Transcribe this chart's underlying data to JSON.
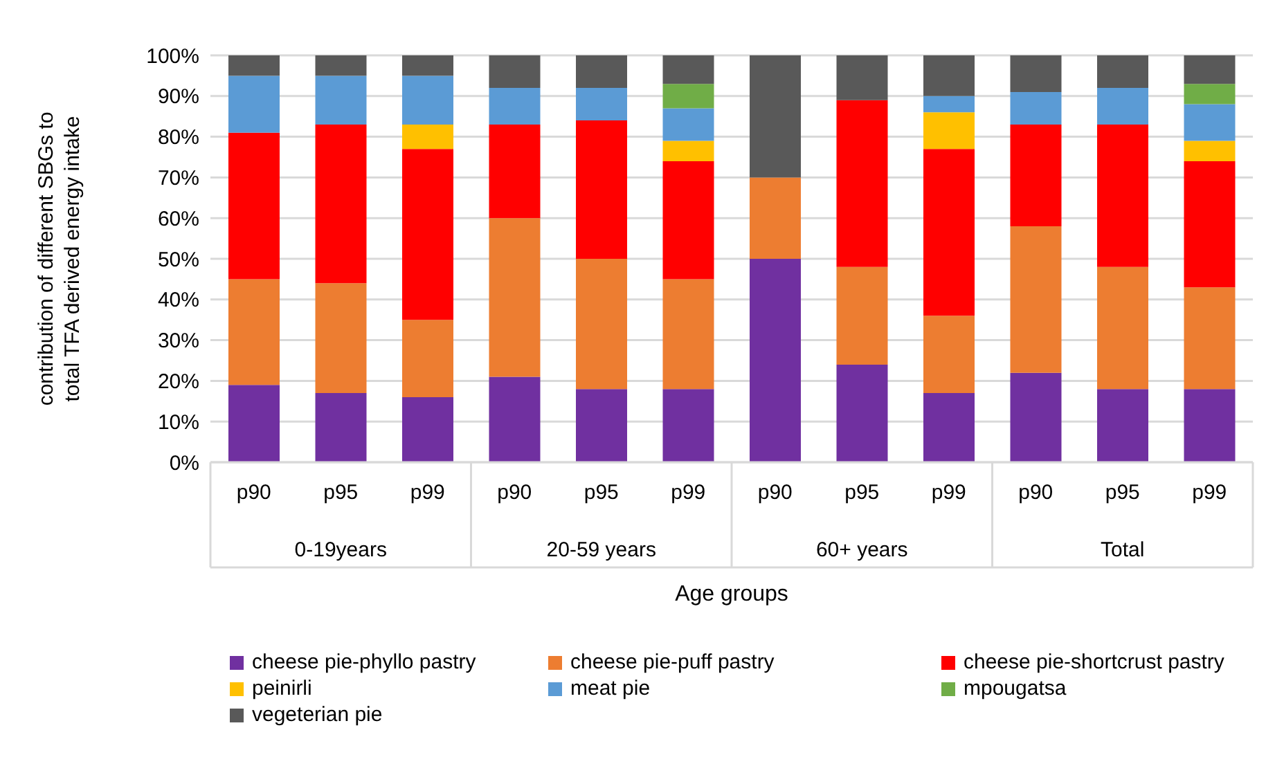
{
  "chart_data": {
    "type": "bar",
    "stacked": true,
    "xlabel": "Age groups",
    "ylabel": "contribution of different SBGs to total  TFA derived energy intake",
    "categories": [
      "p90",
      "p95",
      "p99",
      "p90",
      "p95",
      "p99",
      "p90",
      "p95",
      "p99",
      "p90",
      "p95",
      "p99"
    ],
    "annotations": [
      "0-19years",
      "20-59 years",
      "60+ years",
      "Total"
    ],
    "series": [
      {
        "name": "cheese pie-phyllo pastry",
        "color": "#7030a0",
        "values": [
          19,
          17,
          16,
          21,
          18,
          18,
          50,
          24,
          17,
          22,
          18,
          18
        ]
      },
      {
        "name": "cheese pie-puff pastry",
        "color": "#ed7d31",
        "values": [
          26,
          27,
          19,
          39,
          32,
          27,
          20,
          24,
          19,
          36,
          30,
          25
        ]
      },
      {
        "name": "cheese pie-shortcrust pastry",
        "color": "#ff0000",
        "values": [
          36,
          39,
          42,
          23,
          34,
          29,
          0,
          41,
          41,
          25,
          35,
          31
        ]
      },
      {
        "name": "peinirli",
        "color": "#ffc000",
        "values": [
          0,
          0,
          6,
          0,
          0,
          5,
          0,
          0,
          9,
          0,
          0,
          5
        ]
      },
      {
        "name": "meat pie",
        "color": "#5b9bd5",
        "values": [
          14,
          12,
          12,
          9,
          8,
          8,
          0,
          0,
          4,
          8,
          9,
          9
        ]
      },
      {
        "name": "mpougatsa",
        "color": "#70ad47",
        "values": [
          0,
          0,
          0,
          0,
          0,
          6,
          0,
          0,
          0,
          0,
          0,
          5
        ]
      },
      {
        "name": "vegeterian pie",
        "color": "#595959",
        "values": [
          5,
          5,
          5,
          8,
          8,
          7,
          30,
          11,
          10,
          9,
          8,
          7
        ]
      }
    ],
    "ylim": [
      0,
      100
    ],
    "yticks": [
      {
        "value": 0,
        "label": "0%"
      },
      {
        "value": 10,
        "label": "10%"
      },
      {
        "value": 20,
        "label": "20%"
      },
      {
        "value": 30,
        "label": "30%"
      },
      {
        "value": 40,
        "label": "40%"
      },
      {
        "value": 50,
        "label": "50%"
      },
      {
        "value": 60,
        "label": "60%"
      },
      {
        "value": 70,
        "label": "70%"
      },
      {
        "value": 80,
        "label": "80%"
      },
      {
        "value": 90,
        "label": "90%"
      },
      {
        "value": 100,
        "label": "100%"
      }
    ],
    "grid": "y",
    "legend": "bottom"
  }
}
